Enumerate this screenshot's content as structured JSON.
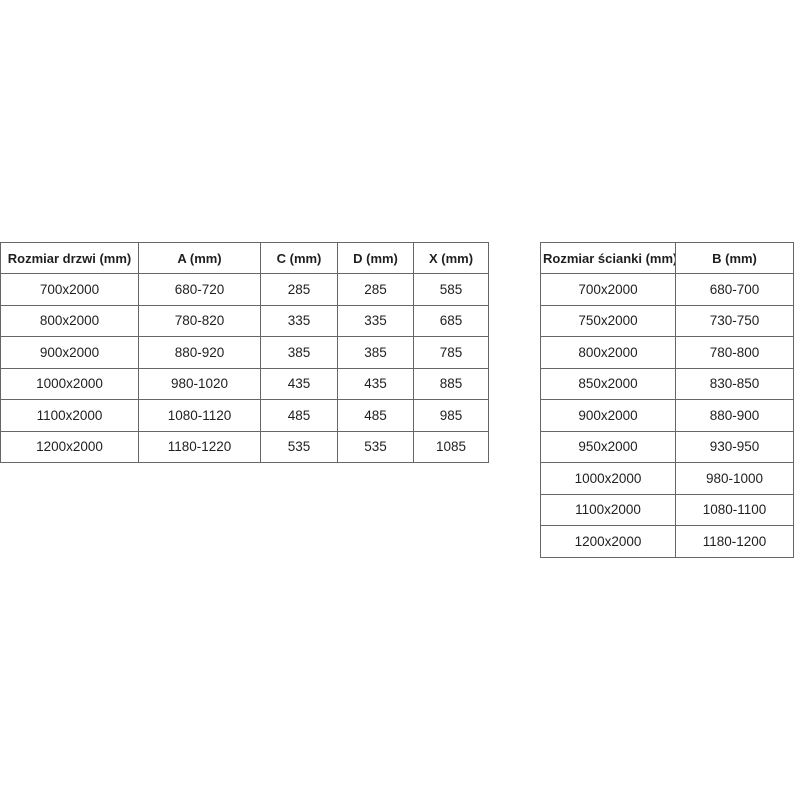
{
  "colors": {
    "background": "#ffffff",
    "table_border": "#666666",
    "text": "#1f1f1f"
  },
  "tables": {
    "doors": {
      "headers": [
        "Rozmiar drzwi (mm)",
        "A (mm)",
        "C (mm)",
        "D (mm)",
        "X (mm)"
      ],
      "rows": [
        [
          "700x2000",
          "680-720",
          "285",
          "285",
          "585"
        ],
        [
          "800x2000",
          "780-820",
          "335",
          "335",
          "685"
        ],
        [
          "900x2000",
          "880-920",
          "385",
          "385",
          "785"
        ],
        [
          "1000x2000",
          "980-1020",
          "435",
          "435",
          "885"
        ],
        [
          "1100x2000",
          "1080-1120",
          "485",
          "485",
          "985"
        ],
        [
          "1200x2000",
          "1180-1220",
          "535",
          "535",
          "1085"
        ]
      ]
    },
    "walls": {
      "headers": [
        "Rozmiar ścianki (mm)",
        "B (mm)"
      ],
      "rows": [
        [
          "700x2000",
          "680-700"
        ],
        [
          "750x2000",
          "730-750"
        ],
        [
          "800x2000",
          "780-800"
        ],
        [
          "850x2000",
          "830-850"
        ],
        [
          "900x2000",
          "880-900"
        ],
        [
          "950x2000",
          "930-950"
        ],
        [
          "1000x2000",
          "980-1000"
        ],
        [
          "1100x2000",
          "1080-1100"
        ],
        [
          "1200x2000",
          "1180-1200"
        ]
      ]
    }
  }
}
